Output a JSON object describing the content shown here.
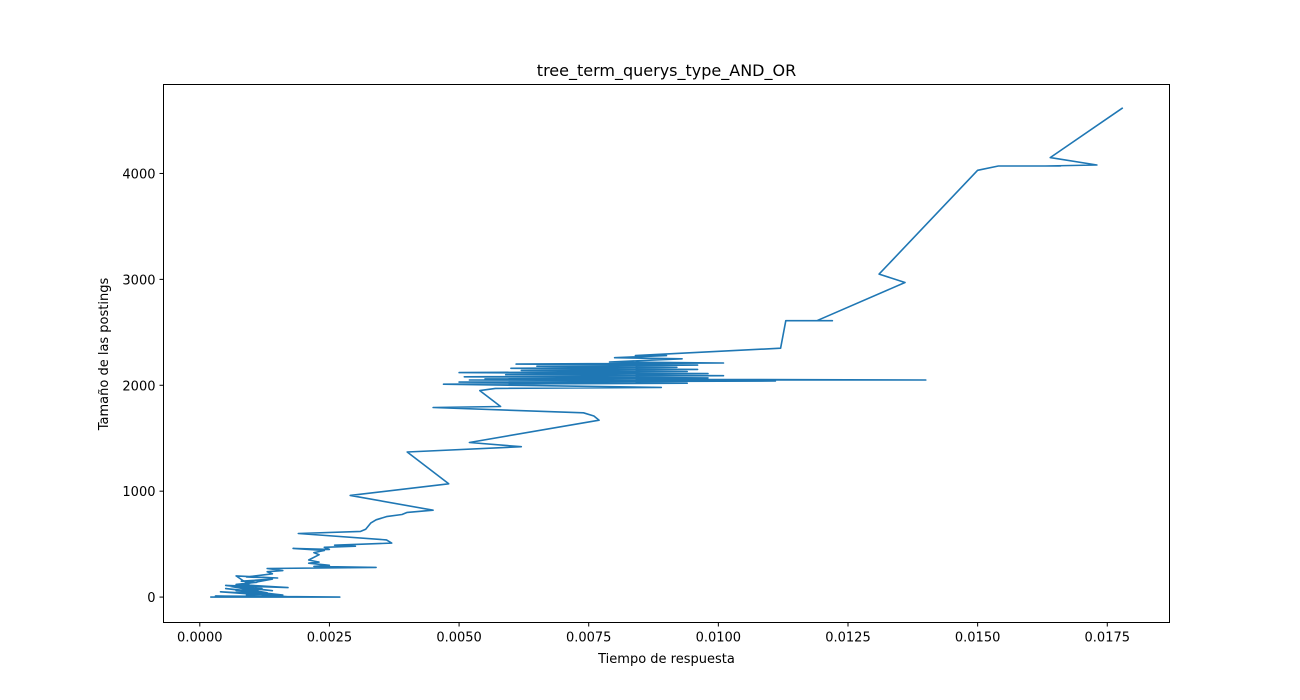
{
  "chart_data": {
    "type": "line",
    "title": "tree_term_querys_type_AND_OR",
    "xlabel": "Tiempo de respuesta",
    "ylabel": "Tamaño de las postings",
    "xlim": [
      -0.0007,
      0.0187
    ],
    "ylim": [
      -240,
      4840
    ],
    "xticks": [
      0.0,
      0.0025,
      0.005,
      0.0075,
      0.01,
      0.0125,
      0.015,
      0.0175
    ],
    "xtick_labels": [
      "0.0000",
      "0.0025",
      "0.0050",
      "0.0075",
      "0.0100",
      "0.0125",
      "0.0150",
      "0.0175"
    ],
    "yticks": [
      0,
      1000,
      2000,
      3000,
      4000
    ],
    "ytick_labels": [
      "0",
      "1000",
      "2000",
      "3000",
      "4000"
    ],
    "grid": false,
    "line_color": "#1f77b4",
    "series": [
      {
        "x": [
          0.0002,
          0.0027,
          0.0003,
          0.0018,
          0.0004,
          0.0016,
          0.0005,
          0.0013,
          0.0006,
          0.0014,
          0.0005,
          0.0017,
          0.0007,
          0.0011,
          0.0008,
          0.0014,
          0.0006,
          0.0012,
          0.0007,
          0.0011,
          0.0009,
          0.0013,
          0.0007,
          0.0015,
          0.0009,
          0.0014,
          0.0013,
          0.0016,
          0.0013,
          0.0034,
          0.0022,
          0.0025,
          0.0021,
          0.0023,
          0.0021,
          0.0023,
          0.0022,
          0.0024,
          0.0018,
          0.0025,
          0.0024,
          0.003,
          0.0026,
          0.0037,
          0.0036,
          0.0019,
          0.0031,
          0.0032,
          0.0033,
          0.0034,
          0.0036,
          0.0039,
          0.004,
          0.0045,
          0.0029,
          0.0048,
          0.004,
          0.0062,
          0.0052,
          0.0077,
          0.0076,
          0.0074,
          0.0045,
          0.0058,
          0.0054,
          0.0057,
          0.0089,
          0.0047,
          0.0094,
          0.005,
          0.0111,
          0.0052,
          0.014,
          0.0055,
          0.0098,
          0.0051,
          0.0101,
          0.0059,
          0.0098,
          0.005,
          0.0094,
          0.0062,
          0.0096,
          0.006,
          0.0092,
          0.0065,
          0.0096,
          0.0061,
          0.0101,
          0.0079,
          0.0093,
          0.008,
          0.009,
          0.0084,
          0.0112,
          0.0113,
          0.0122,
          0.0119,
          0.0136,
          0.0131,
          0.015,
          0.0154,
          0.0166,
          0.0163,
          0.0173,
          0.0164,
          0.0178
        ],
        "y": [
          0,
          0,
          10,
          0,
          50,
          20,
          80,
          40,
          100,
          60,
          110,
          90,
          120,
          140,
          150,
          170,
          100,
          80,
          60,
          40,
          20,
          0,
          200,
          180,
          190,
          220,
          240,
          250,
          270,
          280,
          290,
          300,
          320,
          330,
          350,
          400,
          420,
          440,
          460,
          450,
          470,
          480,
          490,
          510,
          540,
          600,
          620,
          640,
          700,
          730,
          760,
          780,
          800,
          820,
          960,
          1070,
          1370,
          1420,
          1460,
          1670,
          1710,
          1740,
          1790,
          1800,
          1950,
          1970,
          1980,
          2010,
          2020,
          2030,
          2040,
          2050,
          2050,
          2060,
          2070,
          2080,
          2090,
          2100,
          2110,
          2120,
          2130,
          2140,
          2150,
          2160,
          2170,
          2180,
          2190,
          2200,
          2210,
          2220,
          2250,
          2260,
          2280,
          2280,
          2350,
          2610,
          2610,
          2610,
          2970,
          3050,
          4030,
          4070,
          4070,
          4070,
          4080,
          4150,
          4620
        ]
      }
    ]
  }
}
